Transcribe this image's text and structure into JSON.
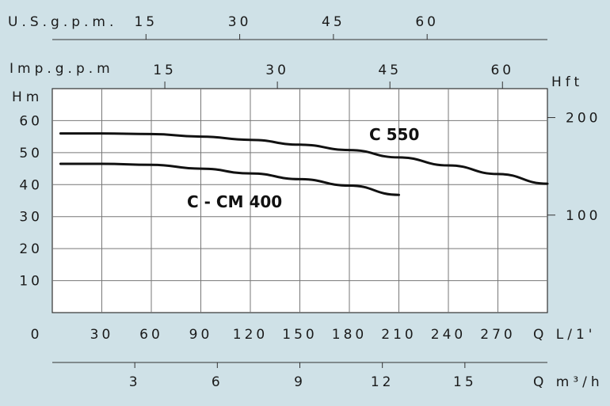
{
  "chart_data": {
    "type": "line",
    "colors": {
      "background": "#cfe1e7",
      "plot_background": "#ffffff",
      "curve": "#111111",
      "grid": "#777777"
    },
    "grid": true,
    "main_x_axis": {
      "unit_label": "Q L/1'",
      "zero_label": "0",
      "range": [
        0,
        300
      ],
      "ticks": [
        30,
        60,
        90,
        120,
        150,
        180,
        210,
        240,
        270
      ]
    },
    "y_axis_left": {
      "unit_label": "Hm",
      "range": [
        0,
        70
      ],
      "ticks": [
        10,
        20,
        30,
        40,
        50,
        60
      ]
    },
    "y_axis_right": {
      "unit_label": "Hft",
      "ticks": [
        100,
        200
      ]
    },
    "top_axis_usgpm": {
      "unit_label": "U.S.g.p.m.",
      "ticks": [
        15,
        30,
        45,
        60
      ]
    },
    "top_axis_impgpm": {
      "unit_label": "Imp.g.p.m",
      "ticks": [
        15,
        30,
        45,
        60
      ]
    },
    "bottom_axis_m3h": {
      "unit_label": "Q m³/h",
      "ticks": [
        3,
        6,
        9,
        12,
        15
      ]
    },
    "series": [
      {
        "name": "C 550",
        "x": [
          5,
          30,
          60,
          90,
          120,
          150,
          180,
          210,
          240,
          270,
          300
        ],
        "y": [
          56,
          56,
          55.8,
          55,
          54,
          52.5,
          50.8,
          48.5,
          46,
          43.3,
          40.3
        ]
      },
      {
        "name": "C - CM 400",
        "x": [
          5,
          30,
          60,
          90,
          120,
          150,
          180,
          210
        ],
        "y": [
          46.5,
          46.5,
          46.2,
          45,
          43.5,
          41.7,
          39.7,
          36.8
        ]
      }
    ]
  }
}
